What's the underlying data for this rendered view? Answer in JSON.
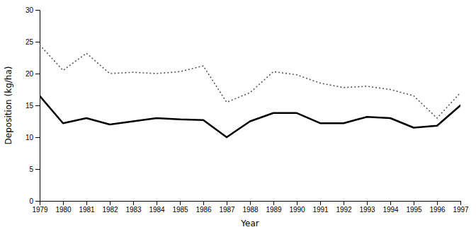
{
  "chart_data": {
    "type": "line",
    "xlabel": "Year",
    "ylabel": "Deposition (kg/ha)",
    "x": [
      1979,
      1980,
      1981,
      1982,
      1983,
      1984,
      1985,
      1986,
      1987,
      1988,
      1989,
      1990,
      1991,
      1992,
      1993,
      1994,
      1995,
      1996,
      1997
    ],
    "series": [
      {
        "color": "#000000",
        "line_style": "solid",
        "values": [
          16.5,
          12.2,
          13.0,
          12.0,
          12.5,
          13.0,
          12.8,
          12.7,
          10.0,
          12.5,
          13.8,
          13.8,
          12.2,
          12.2,
          13.2,
          13.0,
          11.5,
          11.8,
          15.0
        ]
      },
      {
        "color": "#555555",
        "line_style": "dotted",
        "values": [
          24.5,
          20.5,
          23.2,
          20.0,
          20.2,
          20.0,
          20.3,
          21.2,
          15.5,
          17.0,
          20.3,
          19.8,
          18.5,
          17.8,
          18.0,
          17.5,
          16.5,
          13.0,
          17.0
        ]
      }
    ],
    "xlim": [
      1979,
      1997
    ],
    "xticks": [
      1979,
      1980,
      1981,
      1982,
      1983,
      1984,
      1985,
      1986,
      1987,
      1988,
      1989,
      1990,
      1991,
      1992,
      1993,
      1994,
      1995,
      1996,
      1997
    ],
    "ylim": [
      0,
      30
    ],
    "yticks": [
      0,
      5,
      10,
      15,
      20,
      25,
      30
    ],
    "grid": false
  }
}
